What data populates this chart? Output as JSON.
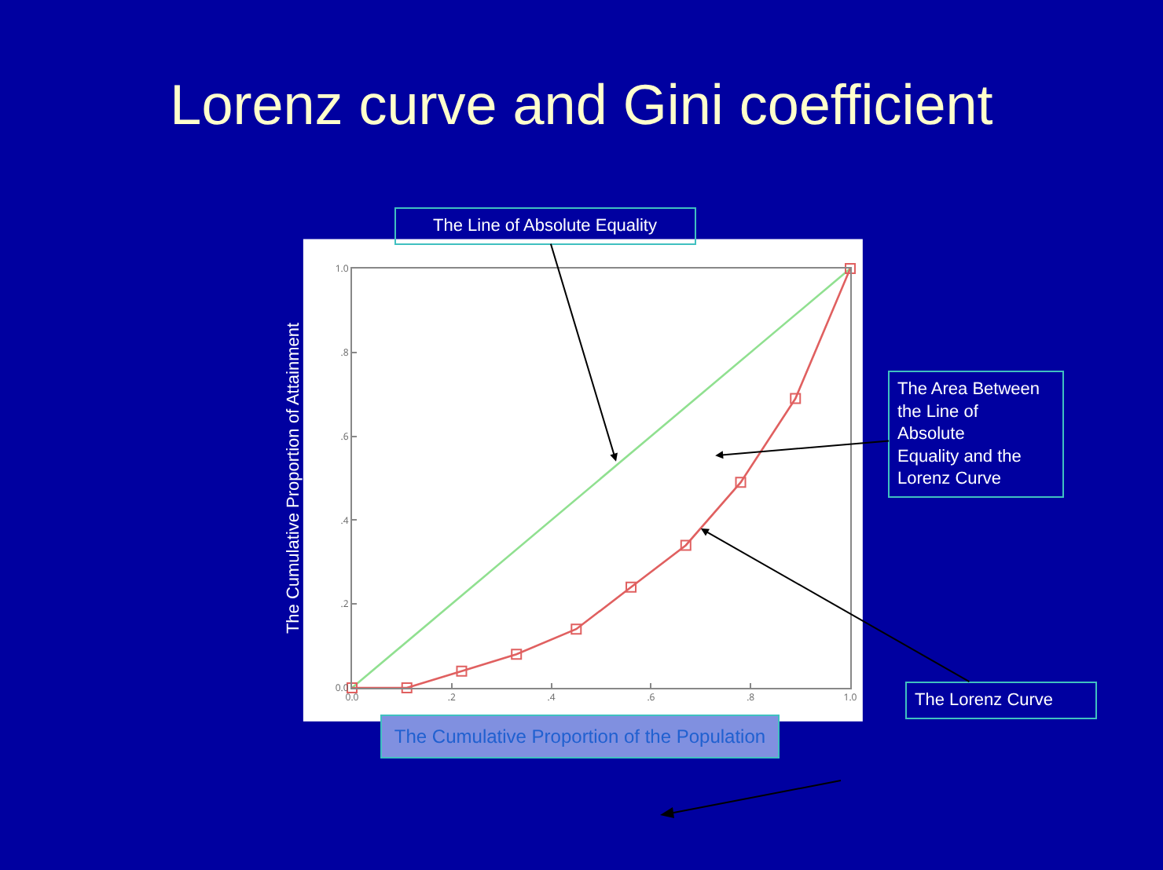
{
  "chart_data": {
    "type": "line",
    "title": "Lorenz curve and Gini coefficient",
    "xlabel": "The Cumulative Proportion of the Population",
    "ylabel": "The Cumulative Proportion of Attainment",
    "series": [
      {
        "color": "#90e090",
        "marker": "none",
        "x": [
          0,
          1
        ],
        "values": [
          0,
          1
        ]
      },
      {
        "color": "#e06060",
        "marker": "square",
        "x": [
          0,
          0.11,
          0.22,
          0.33,
          0.45,
          0.56,
          0.67,
          0.78,
          0.89,
          1.0
        ],
        "values": [
          0,
          0,
          0.04,
          0.08,
          0.14,
          0.24,
          0.34,
          0.49,
          0.69,
          1.0
        ]
      }
    ],
    "xlim": [
      0,
      1
    ],
    "ylim": [
      0,
      1
    ],
    "xticks": [
      {
        "value": 0,
        "label": "0.0"
      },
      {
        "value": 0.2,
        "label": ".2"
      },
      {
        "value": 0.4,
        "label": ".4"
      },
      {
        "value": 0.6,
        "label": ".6"
      },
      {
        "value": 0.8,
        "label": ".8"
      },
      {
        "value": 1,
        "label": "1.0"
      }
    ],
    "yticks": [
      {
        "value": 0,
        "label": "0.0"
      },
      {
        "value": 0.2,
        "label": ".2"
      },
      {
        "value": 0.4,
        "label": ".4"
      },
      {
        "value": 0.6,
        "label": ".6"
      },
      {
        "value": 0.8,
        "label": ".8"
      },
      {
        "value": 1,
        "label": "1.0"
      }
    ],
    "grid": false,
    "line_style": "solid",
    "annotations": [
      {
        "text": "The Line of Absolute Equality",
        "x": 0.53,
        "y": 0.54
      },
      "The Area Between the Line of Absolute Equality and the Lorenz Curve",
      {
        "text": "The Lorenz Curve",
        "x": 0.7,
        "y": 0.38
      }
    ]
  }
}
